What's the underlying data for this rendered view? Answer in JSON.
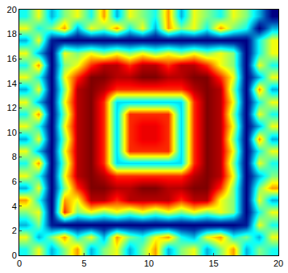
{
  "chart_data": {
    "type": "heatmap",
    "x": [
      0.5,
      1.5,
      2.5,
      3.5,
      4.5,
      5.5,
      6.5,
      7.5,
      8.5,
      9.5,
      10.5,
      11.5,
      12.5,
      13.5,
      14.5,
      15.5,
      16.5,
      17.5,
      18.5,
      19.5
    ],
    "y": [
      0.5,
      1.5,
      2.5,
      3.5,
      4.5,
      5.5,
      6.5,
      7.5,
      8.5,
      9.5,
      10.5,
      11.5,
      12.5,
      13.5,
      14.5,
      15.5,
      16.5,
      17.5,
      18.5,
      19.5
    ],
    "cells": [
      [
        0.4,
        0.6,
        0.3,
        0.5,
        0.7,
        0.3,
        0.5,
        0.6,
        0.3,
        0.5,
        0.7,
        0.3,
        0.5,
        0.6,
        0.3,
        0.5,
        0.7,
        0.3,
        0.5,
        0.4
      ],
      [
        0.6,
        0.3,
        0.5,
        0.7,
        0.4,
        0.6,
        0.3,
        0.7,
        0.5,
        0.4,
        0.6,
        0.7,
        0.4,
        0.3,
        0.6,
        0.7,
        0.4,
        0.5,
        0.3,
        0.6
      ],
      [
        0.3,
        0.5,
        0.1,
        0.05,
        0.05,
        0.05,
        0.05,
        0.05,
        0.05,
        0.05,
        0.05,
        0.05,
        0.05,
        0.05,
        0.05,
        0.05,
        0.05,
        0.1,
        0.6,
        0.4
      ],
      [
        0.5,
        0.6,
        0.05,
        0.8,
        0.5,
        0.6,
        0.5,
        0.6,
        0.5,
        0.6,
        0.5,
        0.6,
        0.5,
        0.6,
        0.5,
        0.6,
        0.5,
        0.05,
        0.4,
        0.6
      ],
      [
        0.7,
        0.4,
        0.05,
        0.7,
        0.6,
        0.9,
        0.9,
        0.8,
        0.9,
        0.9,
        0.9,
        0.9,
        0.8,
        0.9,
        0.9,
        0.6,
        0.5,
        0.05,
        0.6,
        0.3
      ],
      [
        0.3,
        0.6,
        0.05,
        0.5,
        0.8,
        0.95,
        0.95,
        0.9,
        0.9,
        0.95,
        0.95,
        0.9,
        0.9,
        0.95,
        0.95,
        0.8,
        0.5,
        0.05,
        0.5,
        0.7
      ],
      [
        0.6,
        0.4,
        0.05,
        0.6,
        0.9,
        0.95,
        0.9,
        0.8,
        0.8,
        0.8,
        0.8,
        0.8,
        0.8,
        0.9,
        0.95,
        0.9,
        0.6,
        0.05,
        0.3,
        0.5
      ],
      [
        0.4,
        0.7,
        0.05,
        0.5,
        0.9,
        0.95,
        0.8,
        0.35,
        0.35,
        0.35,
        0.35,
        0.35,
        0.35,
        0.8,
        0.95,
        0.9,
        0.5,
        0.05,
        0.6,
        0.4
      ],
      [
        0.6,
        0.3,
        0.05,
        0.6,
        0.9,
        0.95,
        0.8,
        0.35,
        0.8,
        0.8,
        0.8,
        0.8,
        0.35,
        0.8,
        0.95,
        0.9,
        0.6,
        0.05,
        0.4,
        0.6
      ],
      [
        0.3,
        0.6,
        0.05,
        0.5,
        0.9,
        0.95,
        0.8,
        0.35,
        0.8,
        0.85,
        0.85,
        0.8,
        0.35,
        0.8,
        0.95,
        0.9,
        0.5,
        0.05,
        0.7,
        0.3
      ],
      [
        0.6,
        0.4,
        0.05,
        0.6,
        0.9,
        0.95,
        0.8,
        0.35,
        0.8,
        0.85,
        0.85,
        0.8,
        0.35,
        0.8,
        0.95,
        0.9,
        0.6,
        0.05,
        0.3,
        0.6
      ],
      [
        0.4,
        0.7,
        0.05,
        0.5,
        0.9,
        0.95,
        0.8,
        0.35,
        0.8,
        0.8,
        0.8,
        0.8,
        0.35,
        0.8,
        0.95,
        0.9,
        0.5,
        0.05,
        0.6,
        0.4
      ],
      [
        0.6,
        0.3,
        0.05,
        0.6,
        0.9,
        0.95,
        0.8,
        0.35,
        0.35,
        0.35,
        0.35,
        0.35,
        0.35,
        0.8,
        0.95,
        0.9,
        0.6,
        0.05,
        0.4,
        0.6
      ],
      [
        0.3,
        0.6,
        0.05,
        0.5,
        0.9,
        0.95,
        0.9,
        0.8,
        0.8,
        0.8,
        0.8,
        0.8,
        0.8,
        0.9,
        0.95,
        0.9,
        0.5,
        0.05,
        0.7,
        0.3
      ],
      [
        0.6,
        0.4,
        0.05,
        0.6,
        0.8,
        0.95,
        0.95,
        0.9,
        0.9,
        0.95,
        0.95,
        0.9,
        0.9,
        0.95,
        0.95,
        0.8,
        0.6,
        0.05,
        0.3,
        0.6
      ],
      [
        0.4,
        0.7,
        0.05,
        0.5,
        0.6,
        0.8,
        0.9,
        0.9,
        0.8,
        0.9,
        0.9,
        0.8,
        0.9,
        0.9,
        0.8,
        0.6,
        0.5,
        0.05,
        0.6,
        0.4
      ],
      [
        0.6,
        0.3,
        0.05,
        0.6,
        0.5,
        0.6,
        0.5,
        0.6,
        0.5,
        0.6,
        0.5,
        0.6,
        0.5,
        0.6,
        0.5,
        0.6,
        0.5,
        0.05,
        0.4,
        0.6
      ],
      [
        0.3,
        0.6,
        0.1,
        0.05,
        0.05,
        0.05,
        0.05,
        0.05,
        0.05,
        0.05,
        0.05,
        0.05,
        0.05,
        0.05,
        0.05,
        0.05,
        0.05,
        0.05,
        0.4,
        0.6
      ],
      [
        0.6,
        0.4,
        0.5,
        0.7,
        0.3,
        0.6,
        0.5,
        0.7,
        0.4,
        0.6,
        0.3,
        0.7,
        0.5,
        0.6,
        0.4,
        0.7,
        0.5,
        0.4,
        0.05,
        0.3
      ],
      [
        0.4,
        0.6,
        0.3,
        0.5,
        0.6,
        0.4,
        0.7,
        0.3,
        0.6,
        0.5,
        0.4,
        0.7,
        0.3,
        0.6,
        0.5,
        0.4,
        0.6,
        0.5,
        0.3,
        0.05
      ]
    ],
    "xlim": [
      0,
      20
    ],
    "xticks": [
      0,
      5,
      10,
      15,
      20
    ],
    "ylim": [
      0,
      20
    ],
    "yticks": [
      0,
      2,
      4,
      6,
      8,
      10,
      12,
      14,
      16,
      18,
      20
    ]
  }
}
